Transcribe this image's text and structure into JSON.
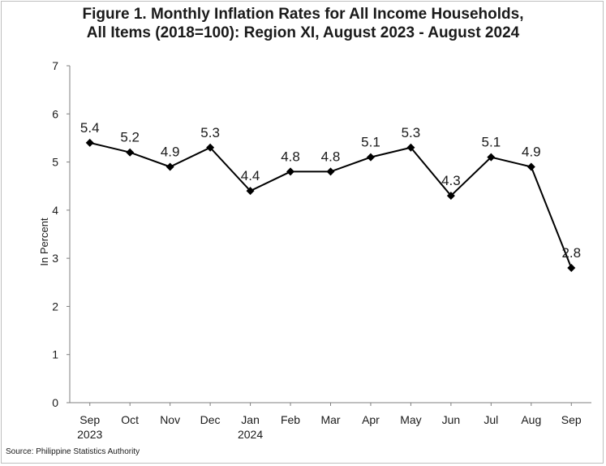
{
  "chart_data": {
    "type": "line",
    "title_line1": "Figure 1. Monthly Inflation Rates for All Income Households,",
    "title_line2": "All Items (2018=100): Region XI, August 2023 - August 2024",
    "ylabel": "In Percent",
    "xlabel": "",
    "ylim": [
      0,
      7
    ],
    "yticks": [
      "0",
      "1",
      "2",
      "3",
      "4",
      "5",
      "6",
      "7"
    ],
    "grid": false,
    "categories": [
      [
        "Sep",
        "2023"
      ],
      [
        "Oct"
      ],
      [
        "Nov"
      ],
      [
        "Dec"
      ],
      [
        "Jan",
        "2024"
      ],
      [
        "Feb"
      ],
      [
        "Mar"
      ],
      [
        "Apr"
      ],
      [
        "May"
      ],
      [
        "Jun"
      ],
      [
        "Jul"
      ],
      [
        "Aug"
      ],
      [
        "Sep"
      ]
    ],
    "values": [
      5.4,
      5.2,
      4.9,
      5.3,
      4.4,
      4.8,
      4.8,
      5.1,
      5.3,
      4.3,
      5.1,
      4.9,
      2.8
    ],
    "data_labels": [
      "5.4",
      "5.2",
      "4.9",
      "5.3",
      "4.4",
      "4.8",
      "4.8",
      "5.1",
      "5.3",
      "4.3",
      "5.1",
      "4.9",
      "2.8"
    ],
    "series_color": "#000000"
  },
  "source": "Source: Philippine Statistics Authority"
}
